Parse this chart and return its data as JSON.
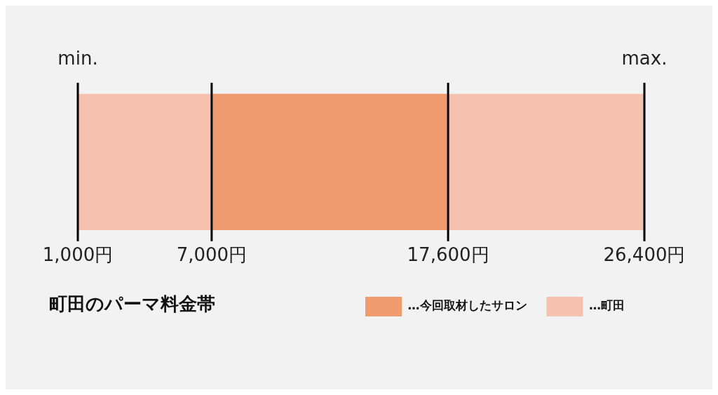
{
  "chart_data": {
    "type": "bar",
    "orientation": "horizontal",
    "title": "町田のパーマ料金帯",
    "categories": [
      null
    ],
    "series": [
      {
        "name": "…今回取材したサロン",
        "color": "#f09a70",
        "values": [
          10600
        ],
        "base": [
          7000
        ]
      },
      {
        "name": "…町田",
        "color": "#f5c2b0",
        "values": [
          25400
        ],
        "base": [
          1000
        ]
      }
    ],
    "xlim": [
      1000,
      26400
    ],
    "xticks": [
      {
        "value": 1000,
        "label": "1,000円"
      },
      {
        "value": 7000,
        "label": "7,000円"
      },
      {
        "value": 17600,
        "label": "17,600円"
      },
      {
        "value": 26400,
        "label": "26,400円"
      }
    ],
    "ref_lines": [
      {
        "axis": "x",
        "value": 1000,
        "label": "min.",
        "color": "#000000"
      },
      {
        "axis": "x",
        "value": 7000,
        "color": "#000000"
      },
      {
        "axis": "x",
        "value": 17600,
        "color": "#000000"
      },
      {
        "axis": "x",
        "value": 26400,
        "label": "max.",
        "color": "#000000"
      }
    ],
    "legend": "bottom right",
    "tick_labels": "x"
  }
}
